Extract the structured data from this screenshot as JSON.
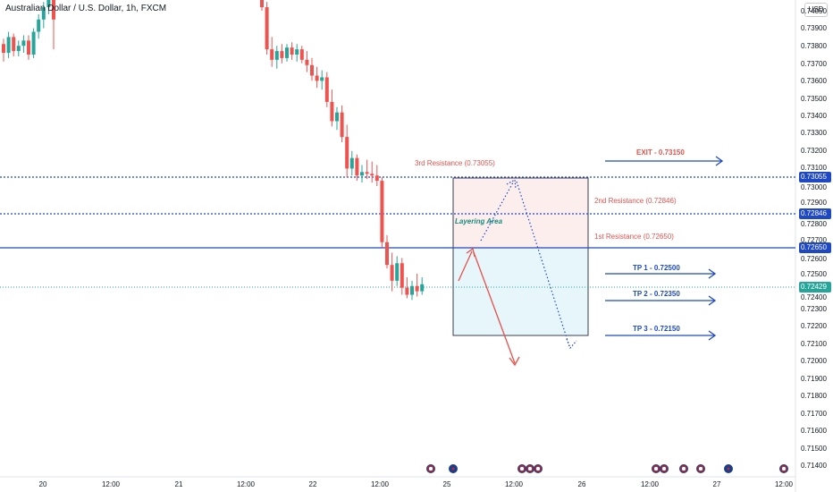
{
  "header": {
    "symbol_title": "Australian Dollar / U.S. Dollar, 1h, FXCM",
    "currency": "USD"
  },
  "price_axis": {
    "labels": [
      "0.74050",
      "0.73900",
      "0.73800",
      "0.73700",
      "0.73600",
      "0.73500",
      "0.73400",
      "0.73300",
      "0.73200",
      "0.73100",
      "0.73000",
      "0.72900",
      "0.72800",
      "0.72700",
      "0.72600",
      "0.72500",
      "0.72400",
      "0.72300",
      "0.72200",
      "0.72100",
      "0.72000",
      "0.71900",
      "0.71800",
      "0.71700",
      "0.71600",
      "0.71500",
      "0.71400"
    ],
    "tags": [
      {
        "value": "0.73055",
        "color": "#1f49c4"
      },
      {
        "value": "0.72846",
        "color": "#1f49c4"
      },
      {
        "value": "0.72650",
        "color": "#1f49c4"
      },
      {
        "value": "0.72429",
        "color": "#26a69a"
      }
    ]
  },
  "time_axis": [
    "20",
    "12:00",
    "21",
    "12:00",
    "22",
    "12:00",
    "25",
    "12:00",
    "26",
    "12:00",
    "27",
    "12:00"
  ],
  "annotations": {
    "res3": "3rd Resistance (0.73055)",
    "res2": "2nd Resistance (0.72846)",
    "res1": "1st Resistance (0.72650)",
    "exit": "EXIT - 0.73150",
    "tp1": "TP 1 - 0.72500",
    "tp2": "TP 2 - 0.72350",
    "tp3": "TP 3 - 0.72150",
    "layering": "Layering Area"
  },
  "colors": {
    "up": "#26a69a",
    "down": "#ef5350",
    "blue_line": "#1f49c4",
    "current": "#26a69a",
    "box_top": "#fdeeee",
    "box_bottom": "#e6f6fb"
  },
  "chart_data": {
    "type": "candlestick",
    "symbol": "AUDUSD",
    "interval": "1h",
    "ylim": [
      0.714,
      0.741
    ],
    "levels": {
      "resistance_3": 0.73055,
      "resistance_2": 0.72846,
      "resistance_1": 0.7265,
      "current_price": 0.72429,
      "exit": 0.7315,
      "tp1": 0.725,
      "tp2": 0.7235,
      "tp3": 0.7215
    },
    "candles_segment_1": [
      [
        0.7381,
        0.7384,
        0.7371,
        0.7376
      ],
      [
        0.7376,
        0.7388,
        0.7373,
        0.7385
      ],
      [
        0.7385,
        0.7387,
        0.7374,
        0.7377
      ],
      [
        0.7377,
        0.7383,
        0.7374,
        0.738
      ],
      [
        0.738,
        0.7386,
        0.7376,
        0.7383
      ],
      [
        0.7383,
        0.7386,
        0.7372,
        0.7375
      ],
      [
        0.7375,
        0.739,
        0.7373,
        0.7388
      ],
      [
        0.7388,
        0.7398,
        0.7384,
        0.7395
      ],
      [
        0.7395,
        0.7405,
        0.739,
        0.7402
      ],
      [
        0.7402,
        0.741,
        0.7398,
        0.7407
      ],
      [
        0.7407,
        0.741,
        0.7378,
        0.7395
      ]
    ],
    "candles_segment_2": [
      [
        0.741,
        0.7412,
        0.74,
        0.7402
      ],
      [
        0.7402,
        0.7405,
        0.7375,
        0.7378
      ],
      [
        0.7378,
        0.7385,
        0.7368,
        0.7372
      ],
      [
        0.7372,
        0.738,
        0.7367,
        0.7377
      ],
      [
        0.7377,
        0.7381,
        0.737,
        0.7373
      ],
      [
        0.7373,
        0.7381,
        0.7371,
        0.7379
      ],
      [
        0.7379,
        0.7382,
        0.7372,
        0.7375
      ],
      [
        0.7375,
        0.7381,
        0.7371,
        0.7378
      ],
      [
        0.7378,
        0.738,
        0.737,
        0.7372
      ],
      [
        0.7372,
        0.7377,
        0.7365,
        0.7369
      ],
      [
        0.7369,
        0.7373,
        0.736,
        0.7363
      ],
      [
        0.7363,
        0.7368,
        0.7356,
        0.736
      ],
      [
        0.736,
        0.7366,
        0.7355,
        0.7362
      ],
      [
        0.7362,
        0.7365,
        0.7345,
        0.7348
      ],
      [
        0.7348,
        0.7355,
        0.7334,
        0.7337
      ],
      [
        0.7337,
        0.7345,
        0.7332,
        0.7342
      ],
      [
        0.7342,
        0.7346,
        0.7325,
        0.7328
      ],
      [
        0.7328,
        0.7335,
        0.7305,
        0.731
      ],
      [
        0.731,
        0.732,
        0.7306,
        0.7316
      ],
      [
        0.7316,
        0.7318,
        0.7303,
        0.7306
      ],
      [
        0.7306,
        0.7312,
        0.7302,
        0.7308
      ],
      [
        0.7308,
        0.7315,
        0.7304,
        0.7307
      ],
      [
        0.7307,
        0.7314,
        0.7302,
        0.7306
      ],
      [
        0.7306,
        0.7312,
        0.73,
        0.7303
      ],
      [
        0.7303,
        0.7305,
        0.7265,
        0.7268
      ],
      [
        0.7268,
        0.7272,
        0.7253,
        0.7255
      ],
      [
        0.7255,
        0.7262,
        0.724,
        0.7246
      ],
      [
        0.7246,
        0.726,
        0.7243,
        0.7256
      ],
      [
        0.7256,
        0.7259,
        0.7238,
        0.7242
      ],
      [
        0.7242,
        0.7248,
        0.7236,
        0.7238
      ],
      [
        0.7238,
        0.7246,
        0.7235,
        0.7243
      ],
      [
        0.7243,
        0.725,
        0.7237,
        0.724
      ],
      [
        0.724,
        0.7248,
        0.7238,
        0.7244
      ]
    ]
  }
}
